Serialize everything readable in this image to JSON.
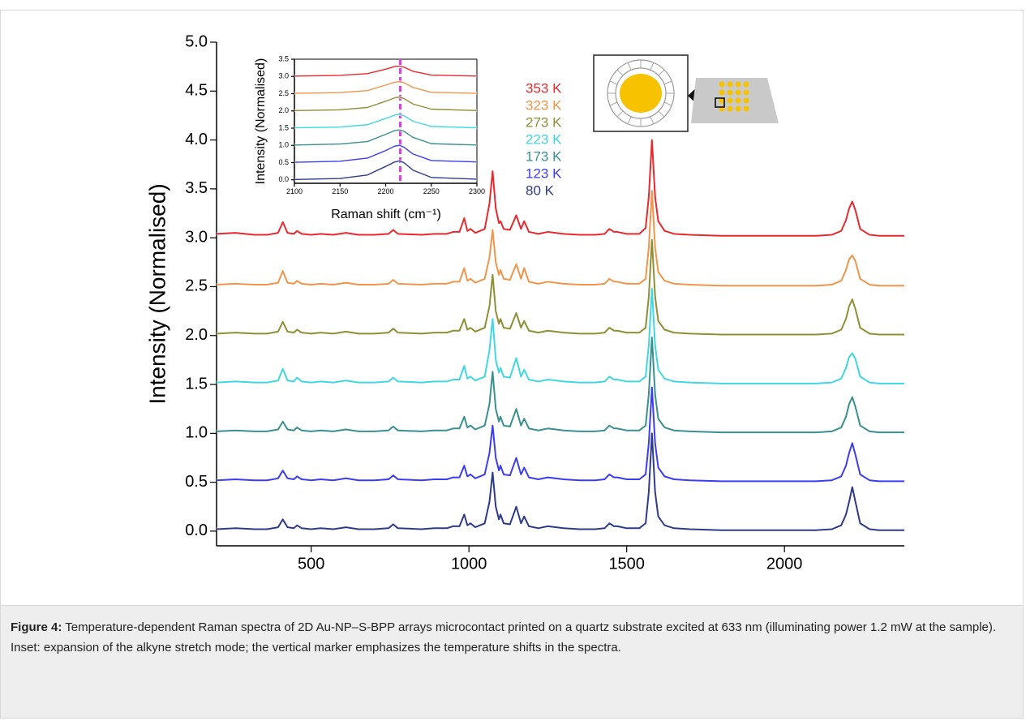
{
  "chart_data": [
    {
      "type": "line",
      "x_label": "Raman shift (cm⁻¹)",
      "y_label": "Intensity (Normalised)",
      "xlim": [
        200,
        2380
      ],
      "ylim": [
        -0.15,
        5.0
      ],
      "xticks": [
        500,
        1000,
        1500,
        2000
      ],
      "yticks": [
        {
          "value": 0,
          "label": "0.0"
        },
        {
          "value": 0.5,
          "label": "0.5"
        },
        {
          "value": 1,
          "label": "1.0"
        },
        {
          "value": 1.5,
          "label": "1.5"
        },
        {
          "value": 2,
          "label": "2.0"
        },
        {
          "value": 2.5,
          "label": "2.5"
        },
        {
          "value": 3,
          "label": "3.0"
        },
        {
          "value": 3.5,
          "label": "3.5"
        },
        {
          "value": 4,
          "label": "4.0"
        },
        {
          "value": 4.5,
          "label": "4.5"
        },
        {
          "value": 5,
          "label": "5.0"
        }
      ],
      "x": [
        200,
        260,
        320,
        360,
        395,
        410,
        425,
        445,
        455,
        470,
        500,
        530,
        570,
        610,
        650,
        700,
        745,
        760,
        775,
        850,
        890,
        930,
        950,
        970,
        985,
        995,
        1005,
        1020,
        1050,
        1065,
        1075,
        1085,
        1095,
        1100,
        1110,
        1130,
        1150,
        1165,
        1175,
        1190,
        1220,
        1250,
        1300,
        1350,
        1400,
        1430,
        1445,
        1460,
        1470,
        1500,
        1540,
        1560,
        1570,
        1580,
        1590,
        1600,
        1620,
        1650,
        1700,
        1800,
        1900,
        2000,
        2100,
        2150,
        2180,
        2195,
        2205,
        2215,
        2225,
        2240,
        2270,
        2300,
        2380
      ],
      "series": [
        {
          "name": "80 K",
          "color": "#2e3a8c",
          "values": [
            0.02,
            0.03,
            0.02,
            0.02,
            0.04,
            0.12,
            0.04,
            0.03,
            0.06,
            0.03,
            0.02,
            0.03,
            0.02,
            0.04,
            0.02,
            0.02,
            0.03,
            0.07,
            0.03,
            0.02,
            0.03,
            0.03,
            0.05,
            0.05,
            0.17,
            0.06,
            0.08,
            0.04,
            0.08,
            0.3,
            0.6,
            0.25,
            0.12,
            0.17,
            0.08,
            0.07,
            0.25,
            0.08,
            0.15,
            0.05,
            0.03,
            0.05,
            0.03,
            0.02,
            0.02,
            0.03,
            0.08,
            0.05,
            0.05,
            0.03,
            0.03,
            0.08,
            0.4,
            1.0,
            0.4,
            0.15,
            0.06,
            0.03,
            0.02,
            0.01,
            0.01,
            0.01,
            0.01,
            0.02,
            0.06,
            0.17,
            0.3,
            0.45,
            0.3,
            0.08,
            0.02,
            0.01,
            0.01
          ]
        },
        {
          "name": "123 K",
          "color": "#3c3cf0",
          "values": [
            0.52,
            0.53,
            0.52,
            0.52,
            0.54,
            0.62,
            0.54,
            0.53,
            0.56,
            0.53,
            0.52,
            0.53,
            0.52,
            0.54,
            0.52,
            0.52,
            0.53,
            0.57,
            0.53,
            0.52,
            0.53,
            0.53,
            0.55,
            0.55,
            0.67,
            0.56,
            0.58,
            0.54,
            0.58,
            0.8,
            1.08,
            0.75,
            0.62,
            0.67,
            0.58,
            0.57,
            0.75,
            0.58,
            0.65,
            0.55,
            0.53,
            0.55,
            0.53,
            0.52,
            0.52,
            0.53,
            0.58,
            0.55,
            0.55,
            0.53,
            0.53,
            0.58,
            0.9,
            1.47,
            0.9,
            0.65,
            0.56,
            0.53,
            0.52,
            0.51,
            0.51,
            0.51,
            0.51,
            0.52,
            0.56,
            0.67,
            0.8,
            0.9,
            0.78,
            0.58,
            0.52,
            0.51,
            0.51
          ]
        },
        {
          "name": "173 K",
          "color": "#3a8f8f",
          "values": [
            1.02,
            1.03,
            1.02,
            1.02,
            1.04,
            1.12,
            1.04,
            1.03,
            1.06,
            1.03,
            1.02,
            1.03,
            1.02,
            1.04,
            1.02,
            1.02,
            1.03,
            1.07,
            1.03,
            1.02,
            1.03,
            1.03,
            1.05,
            1.05,
            1.17,
            1.06,
            1.08,
            1.04,
            1.08,
            1.3,
            1.63,
            1.25,
            1.12,
            1.17,
            1.08,
            1.07,
            1.25,
            1.08,
            1.15,
            1.05,
            1.03,
            1.05,
            1.03,
            1.02,
            1.02,
            1.03,
            1.08,
            1.05,
            1.05,
            1.03,
            1.03,
            1.08,
            1.4,
            1.98,
            1.4,
            1.15,
            1.06,
            1.03,
            1.02,
            1.01,
            1.01,
            1.01,
            1.01,
            1.02,
            1.06,
            1.17,
            1.3,
            1.37,
            1.27,
            1.08,
            1.02,
            1.01,
            1.01
          ]
        },
        {
          "name": "223 K",
          "color": "#40d8e0",
          "values": [
            1.52,
            1.53,
            1.52,
            1.52,
            1.54,
            1.66,
            1.54,
            1.53,
            1.57,
            1.53,
            1.52,
            1.53,
            1.52,
            1.54,
            1.52,
            1.52,
            1.53,
            1.57,
            1.53,
            1.52,
            1.53,
            1.53,
            1.55,
            1.55,
            1.69,
            1.56,
            1.58,
            1.54,
            1.58,
            1.85,
            2.17,
            1.75,
            1.62,
            1.67,
            1.58,
            1.57,
            1.77,
            1.58,
            1.65,
            1.55,
            1.53,
            1.55,
            1.53,
            1.52,
            1.52,
            1.53,
            1.58,
            1.55,
            1.55,
            1.53,
            1.53,
            1.58,
            1.9,
            2.48,
            1.9,
            1.65,
            1.56,
            1.53,
            1.52,
            1.51,
            1.51,
            1.51,
            1.51,
            1.52,
            1.56,
            1.67,
            1.78,
            1.82,
            1.76,
            1.58,
            1.52,
            1.51,
            1.51
          ]
        },
        {
          "name": "273 K",
          "color": "#8f8f35",
          "values": [
            2.02,
            2.03,
            2.02,
            2.02,
            2.04,
            2.14,
            2.04,
            2.03,
            2.06,
            2.03,
            2.02,
            2.03,
            2.02,
            2.04,
            2.02,
            2.02,
            2.03,
            2.07,
            2.03,
            2.02,
            2.03,
            2.03,
            2.05,
            2.05,
            2.17,
            2.06,
            2.08,
            2.04,
            2.08,
            2.3,
            2.62,
            2.25,
            2.12,
            2.17,
            2.08,
            2.07,
            2.23,
            2.08,
            2.15,
            2.05,
            2.03,
            2.05,
            2.03,
            2.02,
            2.02,
            2.03,
            2.08,
            2.05,
            2.05,
            2.03,
            2.03,
            2.08,
            2.4,
            2.98,
            2.4,
            2.15,
            2.06,
            2.03,
            2.02,
            2.01,
            2.01,
            2.01,
            2.01,
            2.02,
            2.06,
            2.17,
            2.3,
            2.37,
            2.27,
            2.08,
            2.02,
            2.01,
            2.01
          ]
        },
        {
          "name": "323 K",
          "color": "#f0954a",
          "values": [
            2.52,
            2.53,
            2.52,
            2.52,
            2.54,
            2.66,
            2.54,
            2.53,
            2.56,
            2.53,
            2.52,
            2.53,
            2.52,
            2.54,
            2.52,
            2.52,
            2.53,
            2.57,
            2.53,
            2.52,
            2.53,
            2.53,
            2.55,
            2.55,
            2.69,
            2.56,
            2.58,
            2.54,
            2.58,
            2.8,
            3.08,
            2.75,
            2.62,
            2.67,
            2.58,
            2.57,
            2.73,
            2.58,
            2.69,
            2.55,
            2.53,
            2.55,
            2.53,
            2.52,
            2.52,
            2.53,
            2.58,
            2.55,
            2.55,
            2.53,
            2.53,
            2.58,
            2.9,
            3.48,
            2.9,
            2.65,
            2.56,
            2.53,
            2.52,
            2.51,
            2.51,
            2.51,
            2.51,
            2.52,
            2.56,
            2.67,
            2.78,
            2.82,
            2.76,
            2.58,
            2.52,
            2.51,
            2.51
          ]
        },
        {
          "name": "353 K",
          "color": "#e8292e",
          "values": [
            3.04,
            3.05,
            3.03,
            3.03,
            3.05,
            3.16,
            3.05,
            3.04,
            3.07,
            3.04,
            3.03,
            3.04,
            3.03,
            3.05,
            3.03,
            3.03,
            3.04,
            3.08,
            3.04,
            3.03,
            3.04,
            3.04,
            3.06,
            3.06,
            3.2,
            3.07,
            3.09,
            3.05,
            3.09,
            3.35,
            3.68,
            3.3,
            3.15,
            3.17,
            3.09,
            3.08,
            3.23,
            3.09,
            3.17,
            3.06,
            3.04,
            3.06,
            3.04,
            3.03,
            3.03,
            3.04,
            3.09,
            3.06,
            3.06,
            3.04,
            3.04,
            3.1,
            3.42,
            4.0,
            3.42,
            3.17,
            3.07,
            3.04,
            3.03,
            3.02,
            3.02,
            3.02,
            3.02,
            3.03,
            3.07,
            3.18,
            3.3,
            3.37,
            3.28,
            3.09,
            3.03,
            3.02,
            3.02
          ]
        }
      ]
    },
    {
      "type": "line",
      "x_label": "Raman shift (cm⁻¹)",
      "y_label": "Intensity (Normalised)",
      "xlim": [
        2100,
        2300
      ],
      "ylim": [
        -0.1,
        3.5
      ],
      "xticks": [
        2100,
        2150,
        2200,
        2250,
        2300
      ],
      "yticks": [
        {
          "value": 0,
          "label": "0.0"
        },
        {
          "value": 0.5,
          "label": "0.5"
        },
        {
          "value": 1,
          "label": "1.0"
        },
        {
          "value": 1.5,
          "label": "1.5"
        },
        {
          "value": 2,
          "label": "2.0"
        },
        {
          "value": 2.5,
          "label": "2.5"
        },
        {
          "value": 3,
          "label": "3.0"
        },
        {
          "value": 3.5,
          "label": "3.5"
        }
      ],
      "marker": 2216,
      "marker_color": "#e040e0",
      "x": [
        2100,
        2150,
        2180,
        2200,
        2210,
        2215,
        2220,
        2230,
        2250,
        2300
      ],
      "series": [
        {
          "color": "#2e3a8c",
          "values": [
            0.01,
            0.04,
            0.14,
            0.39,
            0.52,
            0.55,
            0.5,
            0.28,
            0.07,
            0.02
          ]
        },
        {
          "color": "#3c3cf0",
          "values": [
            0.51,
            0.54,
            0.63,
            0.85,
            0.98,
            1.0,
            0.95,
            0.75,
            0.56,
            0.52
          ]
        },
        {
          "color": "#3a8f8f",
          "values": [
            1.01,
            1.04,
            1.11,
            1.32,
            1.43,
            1.45,
            1.41,
            1.23,
            1.05,
            1.01
          ]
        },
        {
          "color": "#40d8e0",
          "values": [
            1.51,
            1.53,
            1.6,
            1.78,
            1.88,
            1.9,
            1.86,
            1.7,
            1.55,
            1.51
          ]
        },
        {
          "color": "#8f8f35",
          "values": [
            2.01,
            2.03,
            2.1,
            2.28,
            2.38,
            2.4,
            2.36,
            2.2,
            2.05,
            2.01
          ]
        },
        {
          "color": "#f0954a",
          "values": [
            2.51,
            2.53,
            2.59,
            2.75,
            2.83,
            2.85,
            2.82,
            2.68,
            2.54,
            2.51
          ]
        },
        {
          "color": "#e8292e",
          "values": [
            3.01,
            3.03,
            3.08,
            3.21,
            3.29,
            3.3,
            3.27,
            3.15,
            3.04,
            3.01
          ]
        }
      ]
    }
  ],
  "caption": {
    "label": "Figure 4:",
    "text": "Temperature-dependent Raman spectra of 2D Au-NP–S-BPP arrays microcontact printed on a quartz substrate excited at 633 nm (illuminating power 1.2 mW at the sample). Inset: expansion of the alkyne stretch mode; the vertical marker emphasizes the temperature shifts in the spectra."
  }
}
